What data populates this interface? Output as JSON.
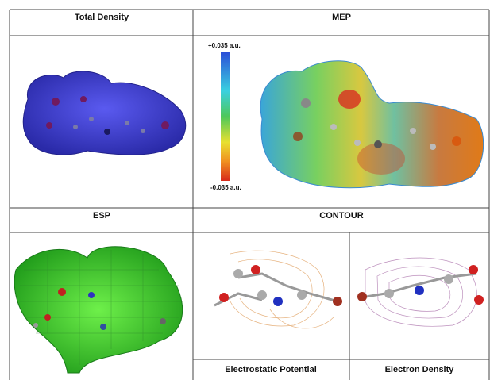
{
  "table": {
    "rows": [
      [
        "Total Density",
        "MEP"
      ],
      [
        "ESP",
        "CONTOUR"
      ]
    ],
    "captions": [
      "Electrostatic Potential",
      "Electron Density"
    ],
    "mep_scale": {
      "max_label": "+0.035 a.u.",
      "min_label": "-0.035 a.u."
    }
  }
}
